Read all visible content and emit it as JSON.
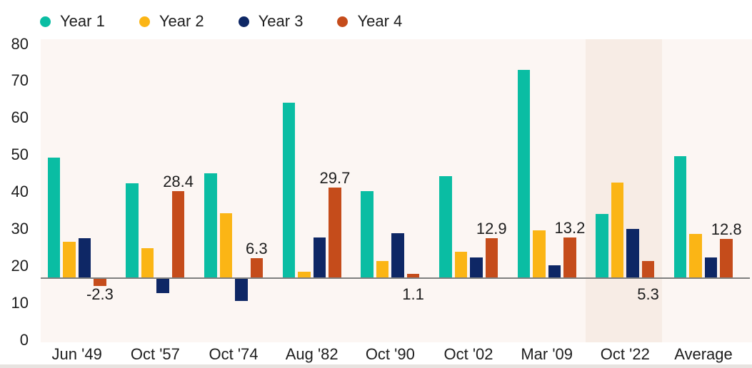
{
  "legend": {
    "items": [
      {
        "label": "Year 1",
        "color": "#0abda3"
      },
      {
        "label": "Year 2",
        "color": "#fbb515"
      },
      {
        "label": "Year 3",
        "color": "#0e2765"
      },
      {
        "label": "Year 4",
        "color": "#c54c1b"
      }
    ]
  },
  "chart_data": {
    "type": "bar",
    "title": "",
    "xlabel": "",
    "ylabel": "",
    "categories": [
      "Jun '49",
      "Oct '57",
      "Oct '74",
      "Aug '82",
      "Oct '90",
      "Oct '02",
      "Mar '09",
      "Oct '22",
      "Average"
    ],
    "series": [
      {
        "name": "Year 1",
        "color": "#0abda3",
        "values": [
          39.6,
          31.1,
          34.3,
          57.6,
          28.5,
          33.3,
          68.5,
          20.9,
          40.1
        ]
      },
      {
        "name": "Year 2",
        "color": "#fbb515",
        "values": [
          11.7,
          9.6,
          21.2,
          1.9,
          5.4,
          8.5,
          15.5,
          31.4,
          14.3
        ]
      },
      {
        "name": "Year 3",
        "color": "#0e2765",
        "values": [
          13.0,
          -4.6,
          -7.2,
          13.2,
          14.5,
          6.7,
          4.0,
          16.1,
          6.5
        ]
      },
      {
        "name": "Year 4",
        "color": "#c54c1b",
        "values": [
          -2.3,
          28.4,
          6.3,
          29.7,
          1.1,
          12.9,
          13.2,
          5.3,
          12.8
        ],
        "data_labels": [
          "-2.3",
          "28.4",
          "6.3",
          "29.7",
          "1.1",
          "12.9",
          "13.2",
          "5.3",
          "12.8"
        ]
      }
    ],
    "ylim": [
      0,
      80
    ],
    "yticks": [
      80,
      70,
      60,
      50,
      40,
      30,
      20,
      10,
      0
    ],
    "grid": false,
    "legend_position": "top-left",
    "highlighted_category": "Oct '22",
    "plot_background": "#fcf6f3",
    "highlight_color": "#f7ece5",
    "baseline_color": "#7f7f7f"
  }
}
